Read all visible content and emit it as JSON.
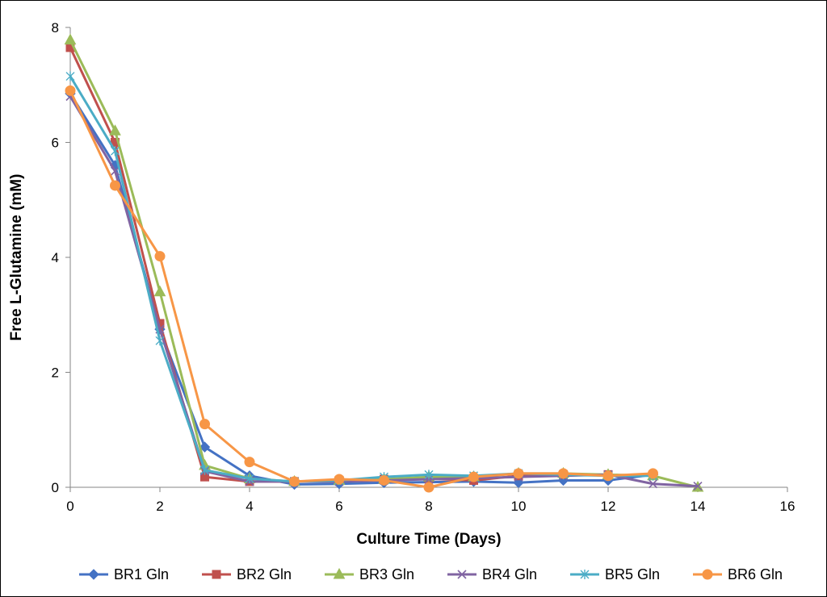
{
  "chart_data": {
    "type": "line",
    "title": "",
    "xlabel": "Culture Time (Days)",
    "ylabel": "Free L-Glutamine (mM)",
    "xlim": [
      0,
      16
    ],
    "ylim": [
      0,
      8
    ],
    "xticks": [
      "0",
      "2",
      "4",
      "6",
      "8",
      "10",
      "12",
      "14",
      "16"
    ],
    "yticks": [
      "0",
      "2",
      "4",
      "6",
      "8"
    ],
    "grid": false,
    "legend_position": "bottom",
    "series": [
      {
        "name": "BR1 Gln",
        "color": "#4472C4",
        "marker": "diamond",
        "x": [
          0,
          1,
          2,
          3,
          4,
          5,
          6,
          7,
          8,
          9,
          10,
          11,
          12,
          13
        ],
        "y": [
          6.85,
          5.6,
          2.75,
          0.7,
          0.2,
          0.05,
          0.06,
          0.08,
          0.09,
          0.1,
          0.08,
          0.12,
          0.12,
          0.22
        ]
      },
      {
        "name": "BR2 Gln",
        "color": "#C0504D",
        "marker": "square",
        "x": [
          0,
          1,
          2,
          3,
          4,
          5,
          6,
          7,
          8,
          9,
          10,
          11,
          12
        ],
        "y": [
          7.65,
          6.0,
          2.85,
          0.18,
          0.1,
          0.1,
          0.12,
          0.14,
          0.15,
          0.12,
          0.2,
          0.22,
          0.22
        ]
      },
      {
        "name": "BR3 Gln",
        "color": "#9BBB59",
        "marker": "triangle",
        "x": [
          0,
          1,
          2,
          3,
          4,
          5,
          6,
          7,
          8,
          9,
          10,
          11,
          12,
          13,
          14
        ],
        "y": [
          7.78,
          6.2,
          3.4,
          0.38,
          0.15,
          0.1,
          0.12,
          0.14,
          0.18,
          0.18,
          0.24,
          0.24,
          0.22,
          0.2,
          0.0
        ]
      },
      {
        "name": "BR4 Gln",
        "color": "#8064A2",
        "marker": "x",
        "x": [
          0,
          1,
          2,
          3,
          4,
          5,
          6,
          7,
          8,
          9,
          10,
          11,
          12,
          13,
          14
        ],
        "y": [
          6.8,
          5.5,
          2.75,
          0.28,
          0.1,
          0.1,
          0.1,
          0.12,
          0.14,
          0.16,
          0.18,
          0.2,
          0.22,
          0.06,
          0.02
        ]
      },
      {
        "name": "BR5 Gln",
        "color": "#4BACC6",
        "marker": "star",
        "x": [
          0,
          1,
          2,
          3,
          4,
          5,
          6,
          7,
          8,
          9,
          10,
          11,
          12,
          13
        ],
        "y": [
          7.15,
          5.85,
          2.55,
          0.3,
          0.15,
          0.1,
          0.12,
          0.18,
          0.22,
          0.2,
          0.24,
          0.22,
          0.2,
          0.2
        ]
      },
      {
        "name": "BR6 Gln",
        "color": "#F79646",
        "marker": "circle",
        "x": [
          0,
          1,
          2,
          3,
          4,
          5,
          6,
          7,
          8,
          9,
          10,
          11,
          12,
          13
        ],
        "y": [
          6.9,
          5.25,
          4.02,
          1.1,
          0.44,
          0.1,
          0.14,
          0.12,
          0.0,
          0.18,
          0.24,
          0.24,
          0.2,
          0.24
        ]
      }
    ]
  }
}
